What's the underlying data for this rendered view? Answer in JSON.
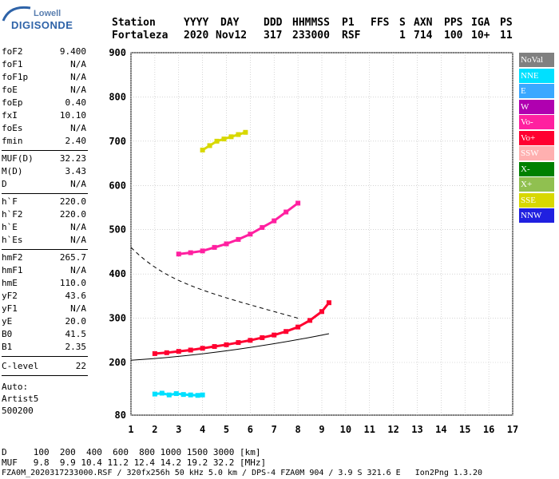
{
  "logo": {
    "top": "Lowell",
    "main": "DIGISONDE"
  },
  "header": {
    "labels": [
      "Station",
      "YYYY",
      "DAY",
      "DDD",
      "HHMMSS",
      "P1",
      "FFS",
      "S",
      "AXN",
      "PPS",
      "IGA",
      "PS"
    ],
    "values": [
      "Fortaleza",
      "2020",
      "Nov12",
      "317",
      "233000",
      "RSF",
      "1",
      "714",
      "100",
      "10+",
      "11"
    ]
  },
  "sidebar": {
    "group1": [
      {
        "k": "foF2",
        "v": "9.400"
      },
      {
        "k": "foF1",
        "v": "N/A"
      },
      {
        "k": "foF1p",
        "v": "N/A"
      },
      {
        "k": "foE",
        "v": "N/A"
      },
      {
        "k": "foEp",
        "v": "0.40"
      },
      {
        "k": "fxI",
        "v": "10.10"
      },
      {
        "k": "foEs",
        "v": "N/A"
      },
      {
        "k": "fmin",
        "v": "2.40"
      }
    ],
    "group2": [
      {
        "k": "MUF(D)",
        "v": "32.23"
      },
      {
        "k": "M(D)",
        "v": "3.43"
      },
      {
        "k": "D",
        "v": "N/A"
      }
    ],
    "group3": [
      {
        "k": "h`F",
        "v": "220.0"
      },
      {
        "k": "h`F2",
        "v": "220.0"
      },
      {
        "k": "h`E",
        "v": "N/A"
      },
      {
        "k": "h`Es",
        "v": "N/A"
      }
    ],
    "group4": [
      {
        "k": "hmF2",
        "v": "265.7"
      },
      {
        "k": "hmF1",
        "v": "N/A"
      },
      {
        "k": "hmE",
        "v": "110.0"
      },
      {
        "k": "yF2",
        "v": "43.6"
      },
      {
        "k": "yF1",
        "v": "N/A"
      },
      {
        "k": "yE",
        "v": "20.0"
      },
      {
        "k": "B0",
        "v": "41.5"
      },
      {
        "k": "B1",
        "v": "2.35"
      }
    ],
    "clevel": {
      "k": "C-level",
      "v": "22"
    },
    "auto": [
      "Auto:",
      "Artist5",
      "500200"
    ]
  },
  "legend": [
    {
      "label": "NoVal",
      "color": "#808080"
    },
    {
      "label": "NNE",
      "color": "#00e0ff"
    },
    {
      "label": "E",
      "color": "#3aa8ff"
    },
    {
      "label": "W",
      "color": "#b000b0"
    },
    {
      "label": "Vo-",
      "color": "#ff20a0"
    },
    {
      "label": "Vo+",
      "color": "#ff0030"
    },
    {
      "label": "SSW",
      "color": "#ffb0b0"
    },
    {
      "label": "X-",
      "color": "#008000"
    },
    {
      "label": "X+",
      "color": "#90c050"
    },
    {
      "label": "SSE",
      "color": "#d8d800"
    },
    {
      "label": "NNW",
      "color": "#2020e0"
    }
  ],
  "bottom": {
    "line1": "D     100  200  400  600  800 1000 1500 3000 [km]",
    "line2": "MUF   9.8  9.9 10.4 11.2 12.4 14.2 19.2 32.2 [MHz]",
    "line3": "FZA0M_2020317233000.RSF / 320fx256h 50 kHz 5.0 km / DPS-4 FZA0M 904 / 3.9 S 321.6 E   Ion2Png 1.3.20"
  },
  "chart_data": {
    "type": "scatter",
    "xlim": [
      1,
      17
    ],
    "ylim": [
      80,
      900
    ],
    "x_ticks": [
      1,
      2,
      3,
      4,
      5,
      6,
      7,
      8,
      9,
      10,
      11,
      12,
      13,
      14,
      15,
      16,
      17
    ],
    "y_ticks": [
      80,
      200,
      300,
      400,
      500,
      600,
      700,
      800,
      900
    ],
    "x_ticklabels": [
      "1",
      "2",
      "3",
      "4",
      "5",
      "6",
      "7",
      "8",
      "9",
      "10",
      "11",
      "12",
      "13",
      "14",
      "15",
      "16",
      "17"
    ],
    "y_ticklabels": [
      "80",
      "200",
      "300",
      "400",
      "500",
      "600",
      "700",
      "800",
      "900"
    ],
    "grid": true,
    "y_scale": "piecewise (80-200 compressed)",
    "series": [
      {
        "name": "Vo+",
        "color": "#ff0030",
        "x": [
          2.0,
          2.5,
          3.0,
          3.5,
          4.0,
          4.5,
          5.0,
          5.5,
          6.0,
          6.5,
          7.0,
          7.5,
          8.0,
          8.5,
          9.0,
          9.3
        ],
        "y": [
          220,
          222,
          225,
          228,
          232,
          236,
          240,
          245,
          250,
          256,
          262,
          270,
          280,
          295,
          315,
          335
        ]
      },
      {
        "name": "Vo-",
        "color": "#ff20a0",
        "x": [
          3.0,
          3.5,
          4.0,
          4.5,
          5.0,
          5.5,
          6.0,
          6.5,
          7.0,
          7.5,
          8.0
        ],
        "y": [
          445,
          448,
          452,
          460,
          468,
          478,
          490,
          505,
          520,
          540,
          560
        ]
      },
      {
        "name": "NNE",
        "color": "#00e0ff",
        "x": [
          2.0,
          2.3,
          2.6,
          2.9,
          3.2,
          3.5,
          3.8,
          4.0
        ],
        "y": [
          128,
          130,
          126,
          129,
          127,
          126,
          125,
          126
        ]
      },
      {
        "name": "SSE",
        "color": "#d8d800",
        "x": [
          4.0,
          4.3,
          4.6,
          4.9,
          5.2,
          5.5,
          5.8
        ],
        "y": [
          680,
          690,
          700,
          705,
          710,
          715,
          720
        ]
      }
    ]
  }
}
